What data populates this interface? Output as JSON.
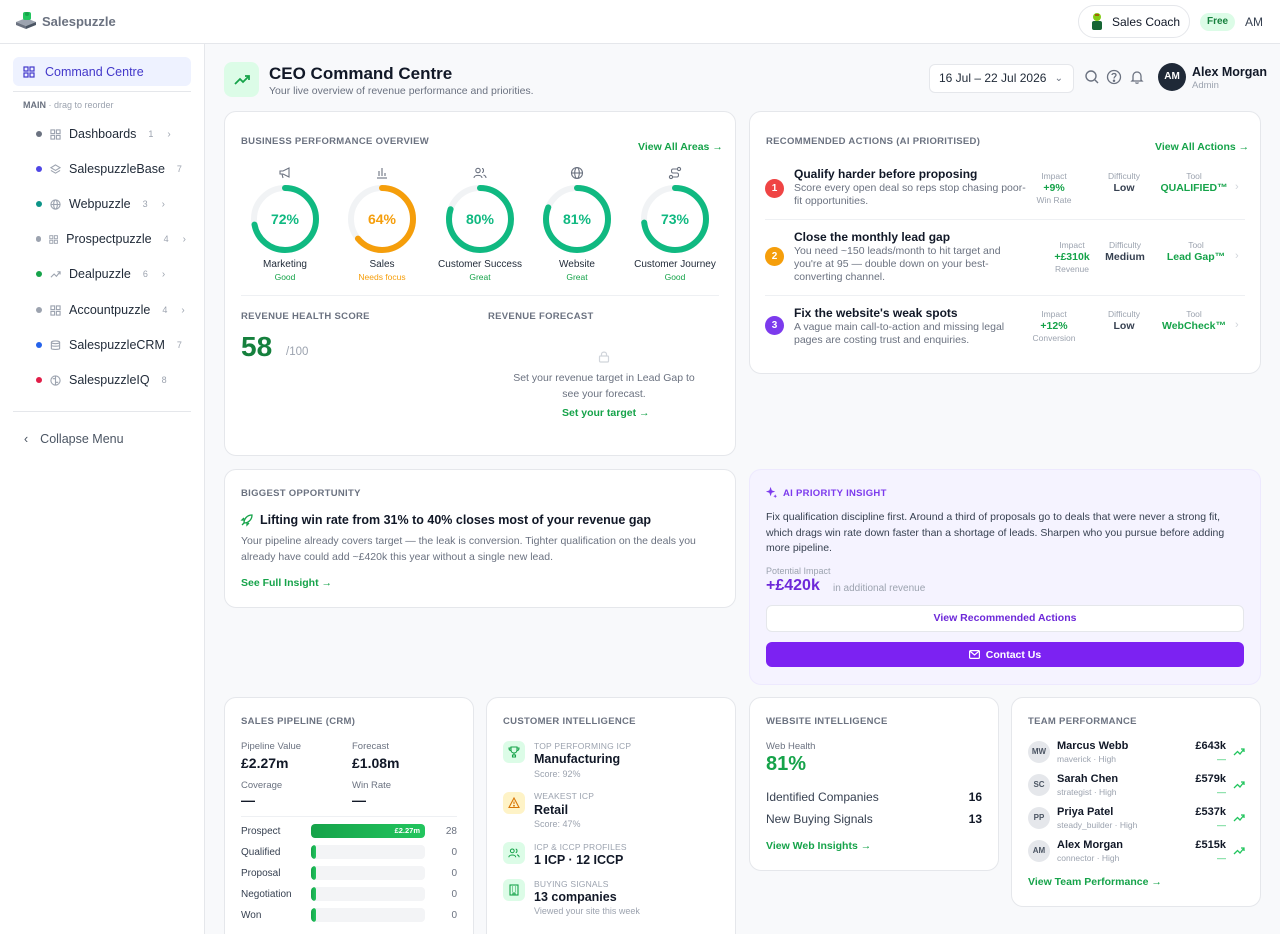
{
  "app": {
    "name": "Salespuzzle",
    "coach_label": "Sales Coach",
    "plan_badge": "Free",
    "user_initials_top": "AM"
  },
  "sidebar": {
    "active_item": "Command Centre",
    "section_label": "MAIN",
    "section_hint": "· drag to reorder",
    "items": [
      {
        "label": "Dashboards",
        "count": "1",
        "color": "#6b7280"
      },
      {
        "label": "SalespuzzleBase",
        "count": "7",
        "color": "#4f46e5"
      },
      {
        "label": "Webpuzzle",
        "count": "3",
        "color": "#0d9488"
      },
      {
        "label": "Prospectpuzzle",
        "count": "4",
        "color": "#9ca3af"
      },
      {
        "label": "Dealpuzzle",
        "count": "6",
        "color": "#16a34a"
      },
      {
        "label": "Accountpuzzle",
        "count": "4",
        "color": "#9ca3af"
      },
      {
        "label": "SalespuzzleCRM",
        "count": "7",
        "color": "#2563eb"
      },
      {
        "label": "SalespuzzleIQ",
        "count": "8",
        "color": "#e11d48"
      }
    ],
    "collapse_label": "Collapse Menu"
  },
  "header": {
    "title": "CEO Command Centre",
    "subtitle": "Your live overview of revenue performance and priorities.",
    "date_range": "16 Jul – 22 Jul 2026",
    "user_name": "Alex Morgan",
    "user_role": "Admin",
    "user_initials": "AM"
  },
  "overview": {
    "title": "BUSINESS PERFORMANCE OVERVIEW",
    "link": "View All Areas →",
    "areas": [
      {
        "label": "Marketing",
        "value": 72,
        "display": "72%",
        "status": "Good",
        "color": "#10b981",
        "status_color": "#16a34a"
      },
      {
        "label": "Sales",
        "value": 64,
        "display": "64%",
        "status": "Needs focus",
        "color": "#f59e0b",
        "status_color": "#f59e0b"
      },
      {
        "label": "Customer Success",
        "value": 80,
        "display": "80%",
        "status": "Great",
        "color": "#10b981",
        "status_color": "#16a34a"
      },
      {
        "label": "Website",
        "value": 81,
        "display": "81%",
        "status": "Great",
        "color": "#10b981",
        "status_color": "#16a34a"
      },
      {
        "label": "Customer Journey",
        "value": 73,
        "display": "73%",
        "status": "Good",
        "color": "#10b981",
        "status_color": "#16a34a"
      }
    ],
    "health_title": "REVENUE HEALTH SCORE",
    "health_score": "58",
    "health_max": "/100",
    "forecast_title": "REVENUE FORECAST",
    "forecast_text": "Set your revenue target in Lead Gap to see your forecast.",
    "forecast_link": "Set your target →"
  },
  "actions": {
    "title": "RECOMMENDED ACTIONS (AI PRIORITISED)",
    "link": "View All Actions →",
    "metric_labels": {
      "impact": "Impact",
      "difficulty": "Difficulty",
      "tool": "Tool"
    },
    "items": [
      {
        "num": "1",
        "color": "#ef4444",
        "title": "Qualify harder before proposing",
        "desc": "Score every open deal so reps stop chasing poor-fit opportunities.",
        "impact": "+9%",
        "impact_sub": "Win Rate",
        "difficulty": "Low",
        "tool": "QUALIFIED™"
      },
      {
        "num": "2",
        "color": "#f59e0b",
        "title": "Close the monthly lead gap",
        "desc": "You need ~150 leads/month to hit target and you're at 95 — double down on your best-converting channel.",
        "impact": "+£310k",
        "impact_sub": "Revenue",
        "difficulty": "Medium",
        "tool": "Lead Gap™"
      },
      {
        "num": "3",
        "color": "#7c3aed",
        "title": "Fix the website's weak spots",
        "desc": "A vague main call-to-action and missing legal pages are costing trust and enquiries.",
        "impact": "+12%",
        "impact_sub": "Conversion",
        "difficulty": "Low",
        "tool": "WebCheck™"
      }
    ]
  },
  "opportunity": {
    "title": "BIGGEST OPPORTUNITY",
    "headline": "Lifting win rate from 31% to 40% closes most of your revenue gap",
    "body": "Your pipeline already covers target — the leak is conversion. Tighter qualification on the deals you already have could add ~£420k this year without a single new lead.",
    "link": "See Full Insight →"
  },
  "insight": {
    "title": "AI PRIORITY INSIGHT",
    "body": "Fix qualification discipline first. Around a third of proposals go to deals that were never a strong fit, which drags win rate down faster than a shortage of leads. Sharpen who you pursue before adding more pipeline.",
    "impact_label": "Potential Impact",
    "impact_value": "+£420k",
    "impact_suffix": "in additional revenue",
    "btn_secondary": "View Recommended Actions",
    "btn_primary": "Contact Us"
  },
  "pipeline": {
    "title": "SALES PIPELINE (CRM)",
    "metrics": [
      {
        "label": "Pipeline Value",
        "value": "£2.27m"
      },
      {
        "label": "Forecast",
        "value": "£1.08m"
      },
      {
        "label": "Coverage",
        "value": "—"
      },
      {
        "label": "Win Rate",
        "value": "—"
      }
    ],
    "stages": [
      {
        "label": "Prospect",
        "fill": 1.0,
        "bar_label": "£2.27m",
        "count": "28"
      },
      {
        "label": "Qualified",
        "fill": 0.04,
        "bar_label": "",
        "count": "0"
      },
      {
        "label": "Proposal",
        "fill": 0.04,
        "bar_label": "",
        "count": "0"
      },
      {
        "label": "Negotiation",
        "fill": 0.04,
        "bar_label": "",
        "count": "0"
      },
      {
        "label": "Won",
        "fill": 0.04,
        "bar_label": "",
        "count": "0"
      }
    ]
  },
  "customer": {
    "title": "CUSTOMER INTELLIGENCE",
    "items": [
      {
        "label": "TOP PERFORMING ICP",
        "value": "Manufacturing",
        "sub": "Score: 92%"
      },
      {
        "label": "WEAKEST ICP",
        "value": "Retail",
        "sub": "Score: 47%"
      },
      {
        "label": "ICP & ICCP PROFILES",
        "value": "1 ICP · 12 ICCP",
        "sub": ""
      },
      {
        "label": "BUYING SIGNALS",
        "value": "13 companies",
        "sub": "Viewed your site this week"
      }
    ]
  },
  "website": {
    "title": "WEBSITE INTELLIGENCE",
    "health_label": "Web Health",
    "health_value": "81%",
    "rows": [
      {
        "label": "Identified Companies",
        "value": "16"
      },
      {
        "label": "New Buying Signals",
        "value": "13"
      }
    ],
    "link": "View Web Insights →"
  },
  "team": {
    "title": "TEAM PERFORMANCE",
    "link": "View Team Performance →",
    "members": [
      {
        "initials": "MW",
        "name": "Marcus Webb",
        "role": "maverick · High",
        "value": "£643k",
        "change": "—"
      },
      {
        "initials": "SC",
        "name": "Sarah Chen",
        "role": "strategist · High",
        "value": "£579k",
        "change": "—"
      },
      {
        "initials": "PP",
        "name": "Priya Patel",
        "role": "steady_builder · High",
        "value": "£537k",
        "change": "—"
      },
      {
        "initials": "AM",
        "name": "Alex Morgan",
        "role": "connector · High",
        "value": "£515k",
        "change": "—"
      }
    ]
  },
  "colors": {
    "accent": "#16a34a",
    "purple": "#7c3aed",
    "primary_button": "#7c22f2"
  }
}
